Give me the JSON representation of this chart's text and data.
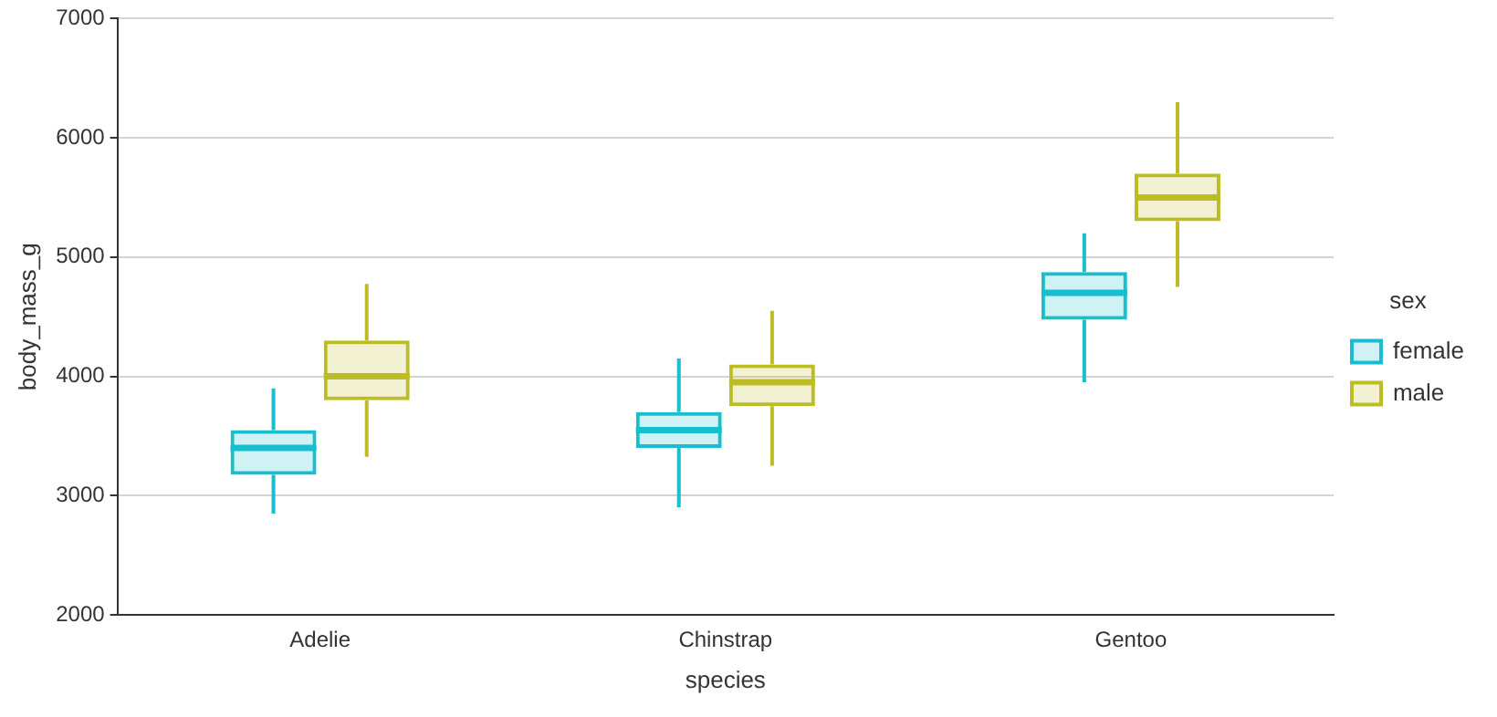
{
  "chart_data": {
    "type": "box",
    "xlabel": "species",
    "ylabel": "body_mass_g",
    "legend_title": "sex",
    "legend": "right",
    "grid": "y",
    "categories": [
      "Adelie",
      "Chinstrap",
      "Gentoo"
    ],
    "ylim": [
      2000,
      7000
    ],
    "yticks": [
      2000,
      3000,
      4000,
      5000,
      6000,
      7000
    ],
    "series": [
      {
        "name": "female",
        "color": "#17becf",
        "boxes": [
          {
            "low": 2850,
            "q1": 3175,
            "median": 3400,
            "q3": 3550,
            "high": 3900
          },
          {
            "low": 2900,
            "q1": 3400,
            "median": 3550,
            "q3": 3700,
            "high": 4150
          },
          {
            "low": 3950,
            "q1": 4475,
            "median": 4700,
            "q3": 4875,
            "high": 5200
          }
        ]
      },
      {
        "name": "male",
        "color": "#bcbd22",
        "boxes": [
          {
            "low": 3325,
            "q1": 3800,
            "median": 4000,
            "q3": 4300,
            "high": 4775
          },
          {
            "low": 3250,
            "q1": 3750,
            "median": 3950,
            "q3": 4100,
            "high": 4550
          },
          {
            "low": 4750,
            "q1": 5300,
            "median": 5500,
            "q3": 5700,
            "high": 6300
          }
        ]
      }
    ]
  }
}
